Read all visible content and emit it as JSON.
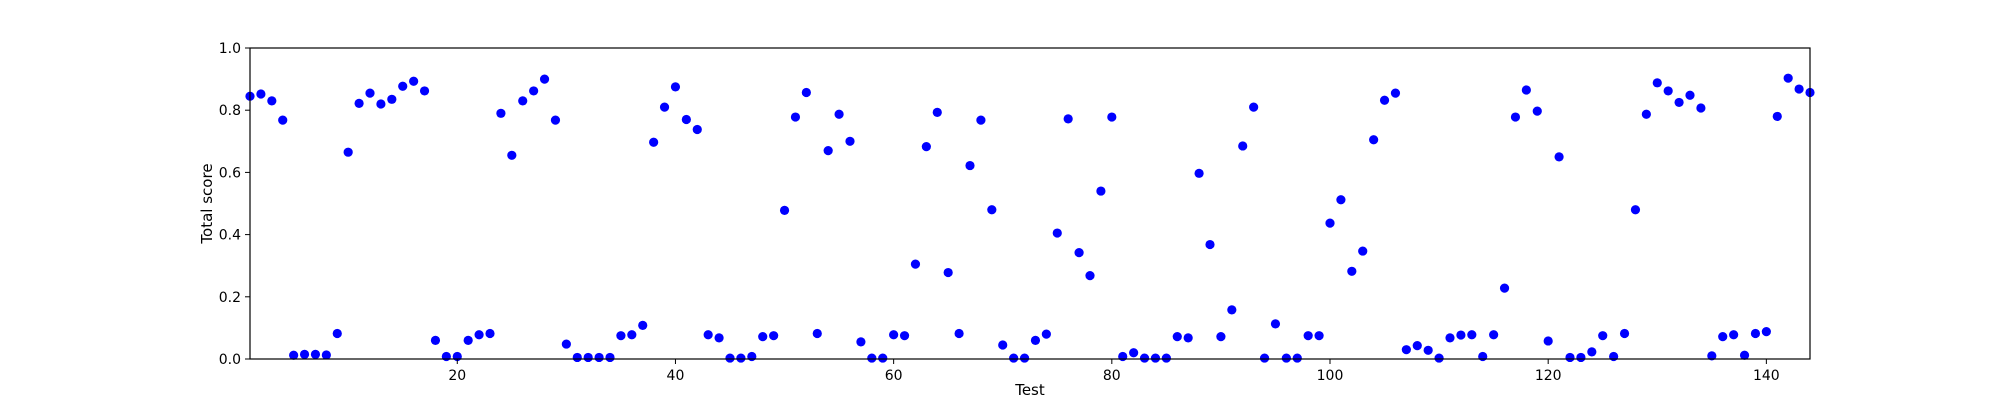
{
  "chart_data": {
    "type": "scatter",
    "xlabel": "Test",
    "ylabel": "Total score",
    "xlim": [
      1,
      144
    ],
    "ylim": [
      0.0,
      1.0
    ],
    "xticks": [
      20,
      40,
      60,
      80,
      100,
      120,
      140
    ],
    "xtick_labels": [
      "20",
      "40",
      "60",
      "80",
      "100",
      "120",
      "140"
    ],
    "yticks": [
      0.0,
      0.2,
      0.4,
      0.6,
      0.8,
      1.0
    ],
    "ytick_labels": [
      "0.0",
      "0.2",
      "0.4",
      "0.6",
      "0.8",
      "1.0"
    ],
    "grid": false,
    "marker_color": "#0000ff",
    "x": [
      1,
      2,
      3,
      4,
      5,
      6,
      7,
      8,
      9,
      10,
      11,
      12,
      13,
      14,
      15,
      16,
      17,
      18,
      19,
      20,
      21,
      22,
      23,
      24,
      25,
      26,
      27,
      28,
      29,
      30,
      31,
      32,
      33,
      34,
      35,
      36,
      37,
      38,
      39,
      40,
      41,
      42,
      43,
      44,
      45,
      46,
      47,
      48,
      49,
      50,
      51,
      52,
      53,
      54,
      55,
      56,
      57,
      58,
      59,
      60,
      61,
      62,
      63,
      64,
      65,
      66,
      67,
      68,
      69,
      70,
      71,
      72,
      73,
      74,
      75,
      76,
      77,
      78,
      79,
      80,
      81,
      82,
      83,
      84,
      85,
      86,
      87,
      88,
      89,
      90,
      91,
      92,
      93,
      94,
      95,
      96,
      97,
      98,
      99,
      100,
      101,
      102,
      103,
      104,
      105,
      106,
      107,
      108,
      109,
      110,
      111,
      112,
      113,
      114,
      115,
      116,
      117,
      118,
      119,
      120,
      121,
      122,
      123,
      124,
      125,
      126,
      127,
      128,
      129,
      130,
      131,
      132,
      133,
      134,
      135,
      136,
      137,
      138,
      139,
      140,
      141,
      142,
      143,
      144
    ],
    "y": [
      0.845,
      0.852,
      0.83,
      0.768,
      0.012,
      0.015,
      0.015,
      0.013,
      0.082,
      0.665,
      0.822,
      0.855,
      0.82,
      0.835,
      0.877,
      0.893,
      0.862,
      0.06,
      0.008,
      0.008,
      0.06,
      0.078,
      0.082,
      0.79,
      0.655,
      0.83,
      0.862,
      0.9,
      0.768,
      0.048,
      0.005,
      0.005,
      0.005,
      0.005,
      0.075,
      0.078,
      0.108,
      0.697,
      0.81,
      0.875,
      0.77,
      0.738,
      0.078,
      0.068,
      0.003,
      0.003,
      0.008,
      0.072,
      0.075,
      0.478,
      0.778,
      0.857,
      0.082,
      0.67,
      0.787,
      0.7,
      0.055,
      0.003,
      0.003,
      0.078,
      0.075,
      0.305,
      0.683,
      0.793,
      0.278,
      0.082,
      0.622,
      0.768,
      0.48,
      0.045,
      0.003,
      0.003,
      0.06,
      0.08,
      0.405,
      0.772,
      0.342,
      0.268,
      0.54,
      0.778,
      0.008,
      0.02,
      0.003,
      0.003,
      0.003,
      0.072,
      0.068,
      0.597,
      0.368,
      0.072,
      0.158,
      0.685,
      0.81,
      0.003,
      0.113,
      0.003,
      0.003,
      0.075,
      0.075,
      0.437,
      0.512,
      0.282,
      0.347,
      0.705,
      0.832,
      0.855,
      0.03,
      0.043,
      0.028,
      0.003,
      0.068,
      0.077,
      0.078,
      0.008,
      0.078,
      0.228,
      0.778,
      0.865,
      0.797,
      0.058,
      0.65,
      0.005,
      0.005,
      0.023,
      0.075,
      0.008,
      0.082,
      0.48,
      0.787,
      0.888,
      0.862,
      0.825,
      0.848,
      0.807,
      0.01,
      0.072,
      0.078,
      0.012,
      0.082,
      0.088,
      0.78,
      0.903,
      0.868,
      0.857
    ]
  }
}
